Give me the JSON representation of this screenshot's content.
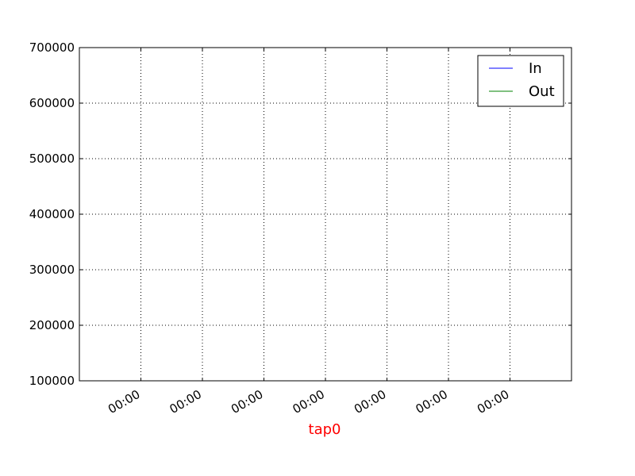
{
  "chart_data": {
    "type": "line",
    "title": "",
    "xlabel": "tap0",
    "xlabel_color": "#ff0000",
    "ylabel": "",
    "ylim": [
      100000,
      700000
    ],
    "yticks": [
      "100000",
      "200000",
      "300000",
      "400000",
      "500000",
      "600000",
      "700000"
    ],
    "xticks": [
      "00:00",
      "00:00",
      "00:00",
      "00:00",
      "00:00",
      "00:00",
      "00:00"
    ],
    "grid": true,
    "legend_position": "top-right",
    "series": [
      {
        "name": "In",
        "color": "#0000ff",
        "values": []
      },
      {
        "name": "Out",
        "color": "#008000",
        "values": []
      }
    ]
  }
}
